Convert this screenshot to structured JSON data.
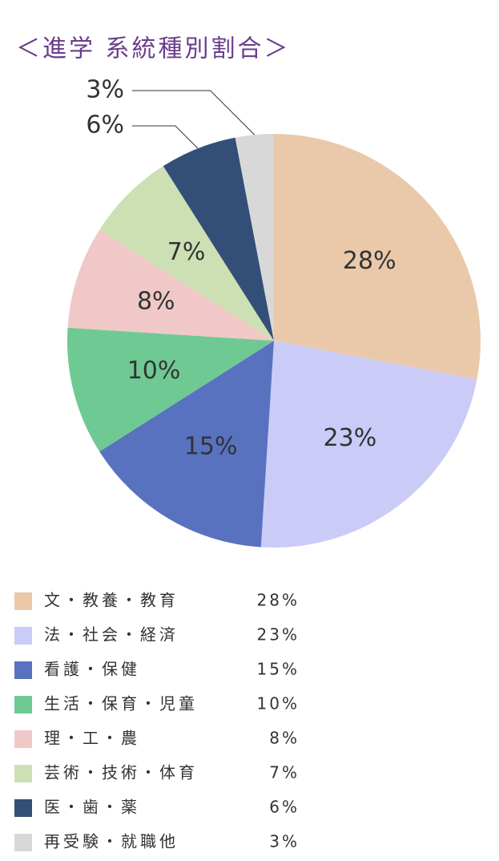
{
  "chart_data": {
    "type": "pie",
    "title": "＜進学 系統種別割合＞",
    "categories": [
      "文・教養・教育",
      "法・社会・経済",
      "看護・保健",
      "生活・保育・児童",
      "理・工・農",
      "芸術・技術・体育",
      "医・歯・薬",
      "再受験・就職他"
    ],
    "values": [
      28,
      23,
      15,
      10,
      8,
      7,
      6,
      3
    ],
    "value_labels": [
      "28%",
      "23%",
      "15%",
      "10%",
      "8%",
      "7%",
      "6%",
      "3%"
    ],
    "colors": [
      "#e9c9aa",
      "#cbcbf8",
      "#5872c0",
      "#6fc993",
      "#f0c8c8",
      "#cde0b3",
      "#344f77",
      "#d8d8d8"
    ]
  }
}
